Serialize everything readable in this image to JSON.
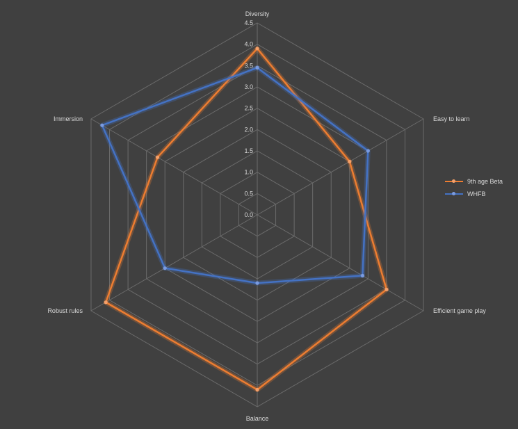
{
  "chart_data": {
    "type": "radar",
    "title": "",
    "axes": [
      "Diversity",
      "Easy to learn",
      "Efficient game play",
      "Balance",
      "Robust rules",
      "Immersion"
    ],
    "scale": {
      "min": 0,
      "max": 4.5,
      "step": 0.5
    },
    "tick_labels": [
      "0.0",
      "0.5",
      "1.0",
      "1.5",
      "2.0",
      "2.5",
      "3.0",
      "3.5",
      "4.0",
      "4.5"
    ],
    "grid": true,
    "legend_position": "right",
    "series": [
      {
        "name": "9th age Beta",
        "color": "#ed7d31",
        "values": [
          3.9,
          2.5,
          3.5,
          4.1,
          4.1,
          2.7
        ]
      },
      {
        "name": "WHFB",
        "color": "#4472c4",
        "values": [
          3.45,
          3.0,
          2.85,
          1.6,
          2.5,
          4.2
        ]
      }
    ]
  }
}
